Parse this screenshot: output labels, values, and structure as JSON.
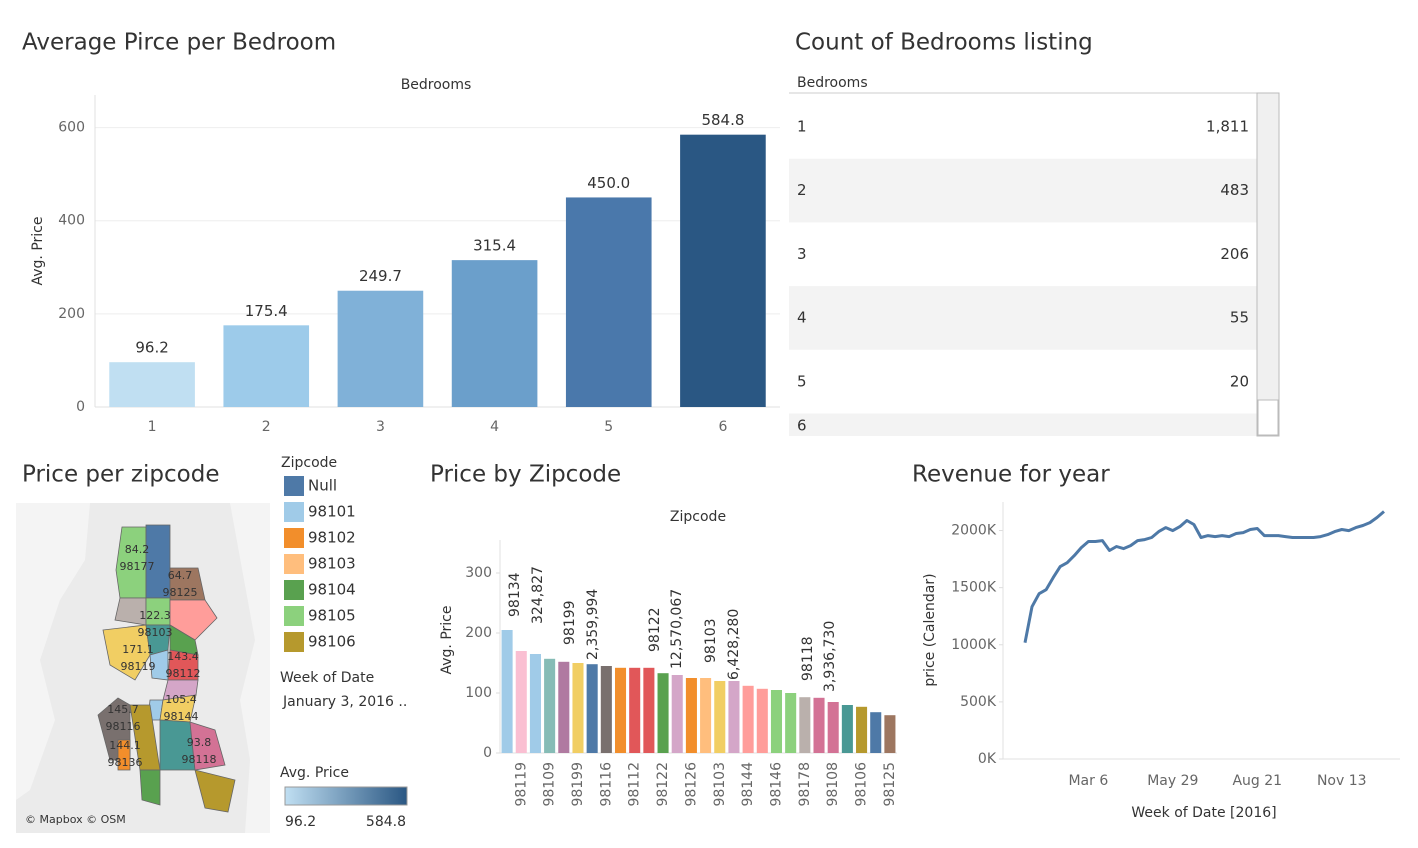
{
  "chart_data": [
    {
      "type": "bar",
      "title": "Average Pirce per Bedroom",
      "x_label": "Bedrooms",
      "y_label": "Avg. Price",
      "categories": [
        "1",
        "2",
        "3",
        "4",
        "5",
        "6"
      ],
      "values": [
        96.2,
        175.4,
        249.7,
        315.4,
        450.0,
        584.8
      ],
      "value_labels": [
        "96.2",
        "175.4",
        "249.7",
        "315.4",
        "450.0",
        "584.8"
      ],
      "colors": [
        "#c0dff2",
        "#9dcbea",
        "#80b1d8",
        "#6b9fcb",
        "#4a78ab",
        "#2a5783"
      ],
      "ylim": [
        0,
        670
      ],
      "yticks": [
        0,
        200,
        400,
        600
      ],
      "grid": true
    },
    {
      "type": "bar",
      "title": "Price by Zipcode",
      "x_label": "Zipcode",
      "y_label": "Avg. Price",
      "categories": [
        null,
        "98119",
        null,
        "98109",
        null,
        "98199",
        null,
        "98116",
        null,
        "98112",
        null,
        "98122",
        null,
        "98126",
        null,
        "98103",
        null,
        "98144",
        null,
        "98146",
        null,
        "98178",
        null,
        "98108",
        null,
        "98106",
        null,
        "98125"
      ],
      "values": [
        205,
        170,
        165,
        157,
        152,
        150,
        148,
        145,
        142,
        142,
        142,
        133,
        130,
        125,
        125,
        120,
        120,
        112,
        107,
        105,
        100,
        93,
        92,
        85,
        80,
        77,
        68,
        63
      ],
      "colors": [
        "#a0cbe8",
        "#fabfd2",
        "#a0cbe8",
        "#86bcb6",
        "#b07aa1",
        "#f1ce63",
        "#4e79a7",
        "#79706e",
        "#f28e2b",
        "#e15759",
        "#e15759",
        "#59a14f",
        "#d4a6c8",
        "#f28e2b",
        "#ffbe7d",
        "#f1ce63",
        "#d4a6c8",
        "#ff9d9a",
        "#ff9d9a",
        "#8cd17d",
        "#8cd17d",
        "#bab0ac",
        "#d37295",
        "#d37295",
        "#499894",
        "#b6992d",
        "#4e79a7",
        "#9d7660"
      ],
      "annotations": [
        {
          "zipcode": "98134",
          "value": "324,827"
        },
        {
          "zipcode": "98199",
          "value": "2,359,994"
        },
        {
          "zipcode": "98122",
          "value": "12,570,067"
        },
        {
          "zipcode": "98103",
          "value": "6,428,280"
        },
        {
          "zipcode": "98118",
          "value": "3,936,730"
        }
      ],
      "ylim": [
        0,
        355
      ],
      "yticks": [
        0,
        100,
        200,
        300
      ],
      "grid": false
    },
    {
      "type": "line",
      "title": "Revenue for year",
      "x_label": "Week of Date [2016]",
      "y_label": "price (Calendar)",
      "categories": [
        null,
        null,
        null,
        null,
        null,
        null,
        null,
        null,
        null,
        "Mar 6",
        null,
        null,
        null,
        null,
        null,
        null,
        null,
        null,
        null,
        null,
        null,
        "May 29",
        null,
        null,
        null,
        null,
        null,
        null,
        null,
        null,
        null,
        null,
        null,
        "Aug 21",
        null,
        null,
        null,
        null,
        null,
        null,
        null,
        null,
        null,
        null,
        null,
        "Nov 13",
        null,
        null,
        null,
        null,
        null,
        null
      ],
      "values": [
        1018000,
        1333000,
        1447000,
        1482000,
        1588000,
        1684000,
        1719000,
        1781000,
        1851000,
        1904000,
        1904000,
        1912000,
        1825000,
        1860000,
        1842000,
        1868000,
        1912000,
        1921000,
        1939000,
        1991000,
        2026000,
        2000000,
        2035000,
        2088000,
        2053000,
        1939000,
        1956000,
        1947000,
        1956000,
        1947000,
        1974000,
        1982000,
        2009000,
        2018000,
        1956000,
        1956000,
        1956000,
        1947000,
        1939000,
        1939000,
        1939000,
        1939000,
        1947000,
        1965000,
        1991000,
        2009000,
        2000000,
        2026000,
        2044000,
        2070000,
        2114000,
        2167000
      ],
      "color": "#4e79a7",
      "ylim": [
        0,
        2250000
      ],
      "yticks": [
        {
          "value": 0,
          "label": "0K"
        },
        {
          "value": 500000,
          "label": "500K"
        },
        {
          "value": 1000000,
          "label": "1000K"
        },
        {
          "value": 1500000,
          "label": "1500K"
        },
        {
          "value": 2000000,
          "label": "2000K"
        }
      ],
      "grid": false
    }
  ],
  "table": {
    "title": "Count of Bedrooms listing",
    "header": "Bedrooms",
    "rows": [
      [
        "1",
        "1,811"
      ],
      [
        "2",
        "483"
      ],
      [
        "3",
        "206"
      ],
      [
        "4",
        "55"
      ],
      [
        "5",
        "20"
      ],
      [
        "6"
      ]
    ]
  },
  "map": {
    "title": "Price per zipcode",
    "attribution": "© Mapbox © OSM",
    "regions": [
      {
        "value": 84.2,
        "zipcode": "98177"
      },
      {
        "value": 64.7,
        "zipcode": "98125"
      },
      {
        "value": 122.3,
        "zipcode": "98103"
      },
      {
        "value": 171.1,
        "zipcode": "98119"
      },
      {
        "value": 143.4,
        "zipcode": "98112"
      },
      {
        "value": 105.4,
        "zipcode": "98144"
      },
      {
        "value": 145.7,
        "zipcode": "98116"
      },
      {
        "value": 144.1,
        "zipcode": "98136"
      },
      {
        "value": 93.8,
        "zipcode": "98118"
      }
    ],
    "legend": {
      "title": "Zipcode",
      "items": [
        {
          "label": "Null",
          "color": "#4e79a7"
        },
        {
          "label": "98101",
          "color": "#a0cbe8"
        },
        {
          "label": "98102",
          "color": "#f28e2b"
        },
        {
          "label": "98103",
          "color": "#ffbe7d"
        },
        {
          "label": "98104",
          "color": "#59a14f"
        },
        {
          "label": "98105",
          "color": "#8cd17d"
        },
        {
          "label": "98106",
          "color": "#b6992d"
        }
      ]
    },
    "filter": {
      "title": "Week of Date",
      "value": "January 3, 2016 .."
    },
    "color_legend": {
      "title": "Avg. Price",
      "min": 96.2,
      "max": 584.8,
      "colors": [
        "#c0dff2",
        "#2a5783"
      ]
    }
  }
}
